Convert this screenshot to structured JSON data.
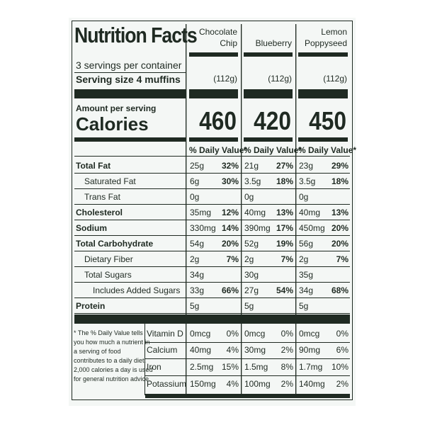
{
  "title": "Nutrition Facts",
  "servings_per_container": "3 servings per container",
  "serving_size_label": "Serving size 4 muffins",
  "amount_per_serving": "Amount per serving",
  "calories_label": "Calories",
  "dv_header": "% Daily Value*",
  "products": [
    {
      "name": "Chocolate Chip",
      "name_line1": "Chocolate",
      "name_line2": "Chip",
      "serving_size": "(112g)",
      "calories": "460"
    },
    {
      "name": "Blueberry",
      "name_line1": "",
      "name_line2": "Blueberry",
      "serving_size": "(112g)",
      "calories": "420"
    },
    {
      "name": "Lemon Poppyseed",
      "name_line1": "Lemon",
      "name_line2": "Poppyseed",
      "serving_size": "(112g)",
      "calories": "450"
    }
  ],
  "nutrients": [
    {
      "label": "Total Fat",
      "bold": true,
      "values": [
        {
          "amount": "25g",
          "dv": "32%"
        },
        {
          "amount": "21g",
          "dv": "27%"
        },
        {
          "amount": "23g",
          "dv": "29%"
        }
      ]
    },
    {
      "label": "Saturated Fat",
      "bold": false,
      "values": [
        {
          "amount": "6g",
          "dv": "30%"
        },
        {
          "amount": "3.5g",
          "dv": "18%"
        },
        {
          "amount": "3.5g",
          "dv": "18%"
        }
      ]
    },
    {
      "label": "Trans Fat",
      "bold": false,
      "values": [
        {
          "amount": "0g",
          "dv": ""
        },
        {
          "amount": "0g",
          "dv": ""
        },
        {
          "amount": "0g",
          "dv": ""
        }
      ]
    },
    {
      "label": "Cholesterol",
      "bold": true,
      "values": [
        {
          "amount": "35mg",
          "dv": "12%"
        },
        {
          "amount": "40mg",
          "dv": "13%"
        },
        {
          "amount": "40mg",
          "dv": "13%"
        }
      ]
    },
    {
      "label": "Sodium",
      "bold": true,
      "values": [
        {
          "amount": "330mg",
          "dv": "14%"
        },
        {
          "amount": "390mg",
          "dv": "17%"
        },
        {
          "amount": "450mg",
          "dv": "20%"
        }
      ]
    },
    {
      "label": "Total Carbohydrate",
      "bold": true,
      "values": [
        {
          "amount": "54g",
          "dv": "20%"
        },
        {
          "amount": "52g",
          "dv": "19%"
        },
        {
          "amount": "56g",
          "dv": "20%"
        }
      ]
    },
    {
      "label": "Dietary Fiber",
      "bold": false,
      "values": [
        {
          "amount": "2g",
          "dv": "7%"
        },
        {
          "amount": "2g",
          "dv": "7%"
        },
        {
          "amount": "2g",
          "dv": "7%"
        }
      ]
    },
    {
      "label": "Total Sugars",
      "bold": false,
      "values": [
        {
          "amount": "34g",
          "dv": ""
        },
        {
          "amount": "30g",
          "dv": ""
        },
        {
          "amount": "35g",
          "dv": ""
        }
      ]
    },
    {
      "label": "Includes Added Sugars",
      "bold": false,
      "values": [
        {
          "amount": "33g",
          "dv": "66%"
        },
        {
          "amount": "27g",
          "dv": "54%"
        },
        {
          "amount": "34g",
          "dv": "68%"
        }
      ]
    },
    {
      "label": "Protein",
      "bold": true,
      "values": [
        {
          "amount": "5g",
          "dv": ""
        },
        {
          "amount": "5g",
          "dv": ""
        },
        {
          "amount": "5g",
          "dv": ""
        }
      ]
    }
  ],
  "vitamins": [
    {
      "label": "Vitamin D",
      "values": [
        {
          "amount": "0mcg",
          "dv": "0%"
        },
        {
          "amount": "0mcg",
          "dv": "0%"
        },
        {
          "amount": "0mcg",
          "dv": "0%"
        }
      ]
    },
    {
      "label": "Calcium",
      "values": [
        {
          "amount": "40mg",
          "dv": "4%"
        },
        {
          "amount": "30mg",
          "dv": "2%"
        },
        {
          "amount": "90mg",
          "dv": "6%"
        }
      ]
    },
    {
      "label": "Iron",
      "values": [
        {
          "amount": "2.5mg",
          "dv": "15%"
        },
        {
          "amount": "1.5mg",
          "dv": "8%"
        },
        {
          "amount": "1.7mg",
          "dv": "10%"
        }
      ]
    },
    {
      "label": "Potassium",
      "values": [
        {
          "amount": "150mg",
          "dv": "4%"
        },
        {
          "amount": "100mg",
          "dv": "2%"
        },
        {
          "amount": "140mg",
          "dv": "2%"
        }
      ]
    }
  ],
  "footnote_lines": [
    "* The % Daily Value tells",
    "you how much a nutrient in",
    "a serving of food",
    "contributes to a daily diet.",
    "2,000 calories a day is used",
    "for general nutrition advice."
  ],
  "colors": {
    "ink": "#1f2a22",
    "panel": "#f4f7f5"
  }
}
